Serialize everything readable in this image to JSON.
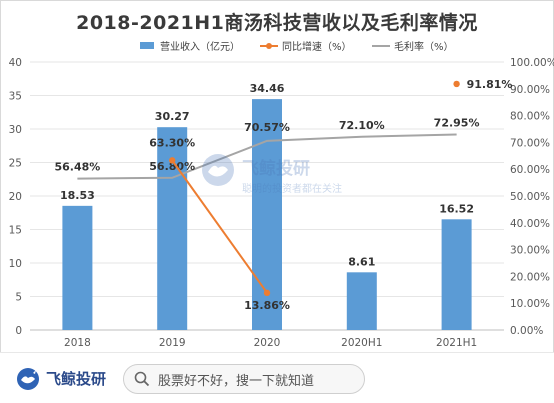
{
  "title": "2018-2021H1商汤科技营收以及毛利率情况",
  "chart_data": {
    "type": "bar+line",
    "categories": [
      "2018",
      "2019",
      "2020",
      "2020H1",
      "2021H1"
    ],
    "legend_position": "top",
    "grid": true,
    "y_left": {
      "range": [
        0,
        40
      ],
      "ticks": [
        "0",
        "5",
        "10",
        "15",
        "20",
        "25",
        "30",
        "35",
        "40"
      ]
    },
    "y_right": {
      "range": [
        0,
        100
      ],
      "ticks": [
        "0.00%",
        "10.00%",
        "20.00%",
        "30.00%",
        "40.00%",
        "50.00%",
        "60.00%",
        "70.00%",
        "80.00%",
        "90.00%",
        "100.00%"
      ]
    },
    "series": [
      {
        "name": "营业收入（亿元）",
        "type": "bar",
        "axis": "left",
        "color": "#5b9bd5",
        "values": [
          18.53,
          30.27,
          34.46,
          8.61,
          16.52
        ],
        "labels": [
          "18.53",
          "30.27",
          "34.46",
          "8.61",
          "16.52"
        ]
      },
      {
        "name": "同比增速（%）",
        "type": "line",
        "axis": "right",
        "color": "#ed7d31",
        "values": [
          null,
          63.3,
          13.86,
          null,
          91.81
        ],
        "labels": [
          "",
          "63.30%",
          "13.86%",
          "",
          "91.81%"
        ]
      },
      {
        "name": "毛利率（%）",
        "type": "line",
        "axis": "right",
        "color": "#a5a5a5",
        "values": [
          56.48,
          56.8,
          70.57,
          72.1,
          72.95
        ],
        "labels": [
          "56.48%",
          "56.80%",
          "70.57%",
          "72.10%",
          "72.95%"
        ]
      }
    ]
  },
  "watermark": {
    "name": "飞鲸投研",
    "slogan": "聪明的投资者都在关注"
  },
  "footer": {
    "brand": "飞鲸投研",
    "search_text": "股票好不好，搜一下就知道"
  },
  "colors": {
    "brand": "#2b4a8a",
    "bar": "#5b9bd5",
    "growth_line": "#ed7d31",
    "margin_line": "#a5a5a5"
  }
}
